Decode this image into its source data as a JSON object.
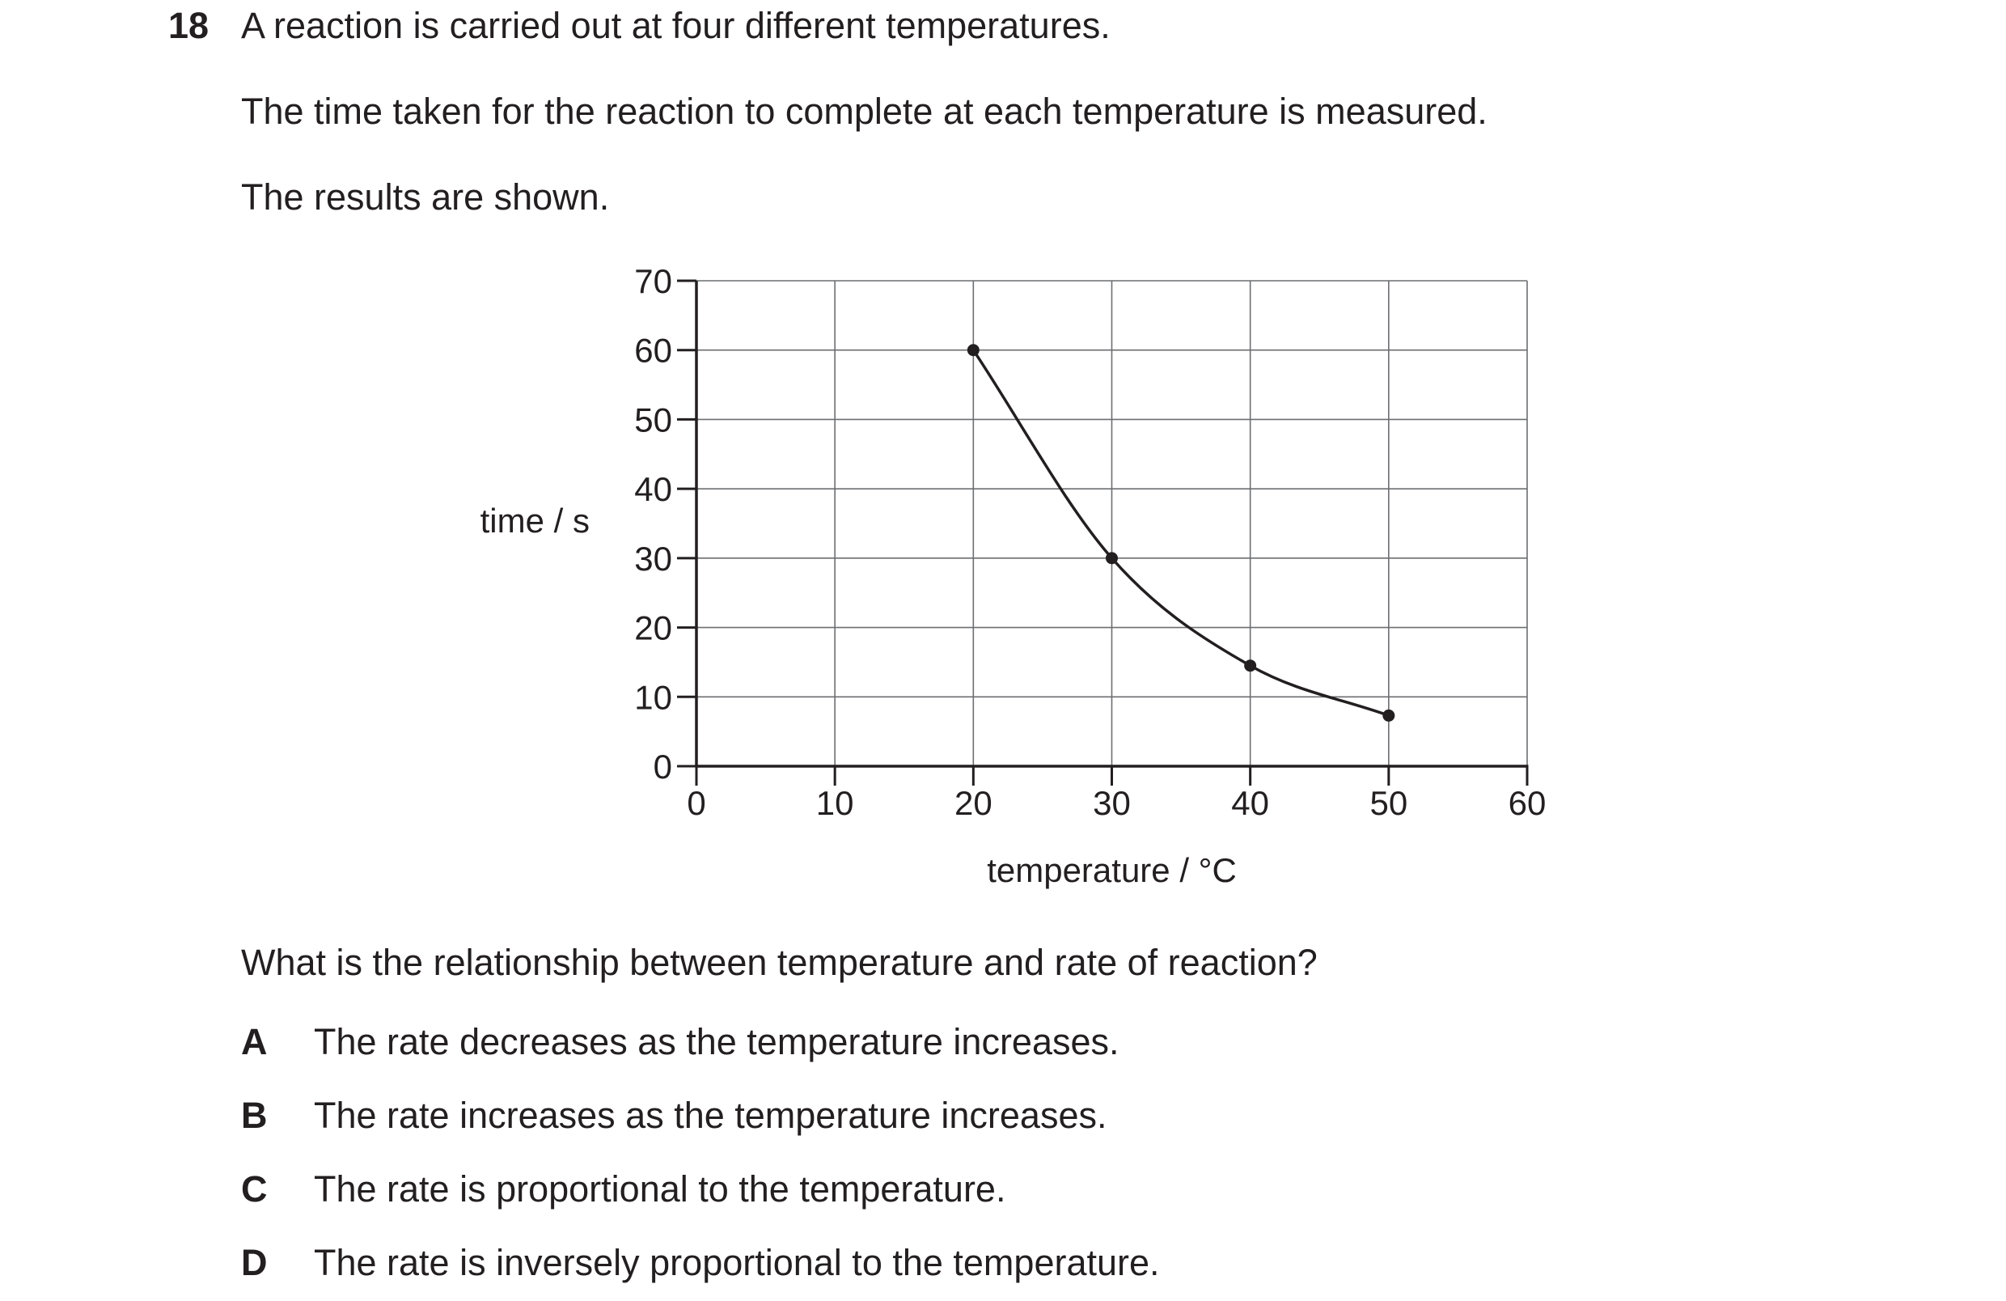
{
  "question": {
    "number": "18",
    "intro": "A reaction is carried out at four different temperatures.",
    "line2": "The time taken for the reaction to complete at each temperature is measured.",
    "line3": "The results are shown.",
    "prompt": "What is the relationship between temperature and rate of reaction?"
  },
  "options": [
    {
      "letter": "A",
      "text": "The rate decreases as the temperature increases."
    },
    {
      "letter": "B",
      "text": "The rate increases as the temperature increases."
    },
    {
      "letter": "C",
      "text": "The rate is proportional to the temperature."
    },
    {
      "letter": "D",
      "text": "The rate is inversely proportional to the temperature."
    }
  ],
  "chart_data": {
    "type": "line",
    "title": "",
    "xlabel": "temperature / °C",
    "ylabel": "time / s",
    "x": [
      20,
      30,
      40,
      50
    ],
    "series": [
      {
        "values": [
          60,
          30,
          14.5,
          7.3
        ]
      }
    ],
    "xlim": [
      0,
      60
    ],
    "ylim": [
      0,
      70
    ],
    "xticks": [
      "0",
      "10",
      "20",
      "30",
      "40",
      "50",
      "60"
    ],
    "yticks": [
      "0",
      "10",
      "20",
      "30",
      "40",
      "50",
      "60",
      "70"
    ],
    "grid": true,
    "line_color": "#231f20",
    "grid_color": "#6d6e71"
  }
}
